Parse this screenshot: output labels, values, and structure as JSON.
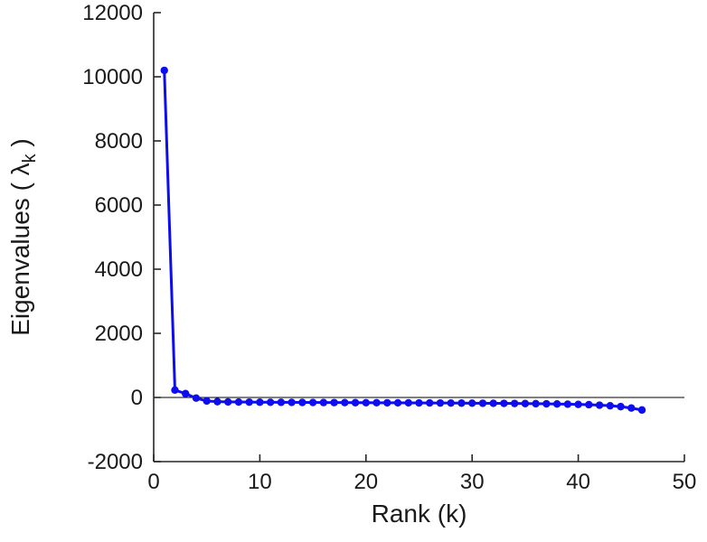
{
  "chart_data": {
    "type": "line",
    "title": "",
    "xlabel": "Rank (k)",
    "ylabel": "Eigenvalues ( λ_k )",
    "ylabel_parts": {
      "prefix": "Eigenvalues ( ",
      "symbol": "λ",
      "subscript": "k",
      "suffix": " )"
    },
    "xlim": [
      0,
      50
    ],
    "ylim": [
      -2000,
      12000
    ],
    "x_ticks": [
      0,
      10,
      20,
      30,
      40,
      50
    ],
    "y_ticks": [
      -2000,
      0,
      2000,
      4000,
      6000,
      8000,
      10000,
      12000
    ],
    "grid": false,
    "zero_line": true,
    "legend": "none",
    "line_color": "#0d0df0",
    "axis_color": "#262626",
    "marker": "circle",
    "x": [
      1,
      2,
      3,
      4,
      5,
      6,
      7,
      8,
      9,
      10,
      11,
      12,
      13,
      14,
      15,
      16,
      17,
      18,
      19,
      20,
      21,
      22,
      23,
      24,
      25,
      26,
      27,
      28,
      29,
      30,
      31,
      32,
      33,
      34,
      35,
      36,
      37,
      38,
      39,
      40,
      41,
      42,
      43,
      44,
      45,
      46
    ],
    "y": [
      10200,
      230,
      120,
      -20,
      -110,
      -130,
      -138,
      -142,
      -145,
      -147,
      -149,
      -151,
      -153,
      -155,
      -156,
      -158,
      -159,
      -160,
      -162,
      -163,
      -164,
      -166,
      -167,
      -168,
      -170,
      -171,
      -173,
      -174,
      -176,
      -178,
      -180,
      -182,
      -184,
      -187,
      -190,
      -194,
      -198,
      -203,
      -209,
      -216,
      -225,
      -240,
      -258,
      -285,
      -330,
      -390
    ]
  }
}
